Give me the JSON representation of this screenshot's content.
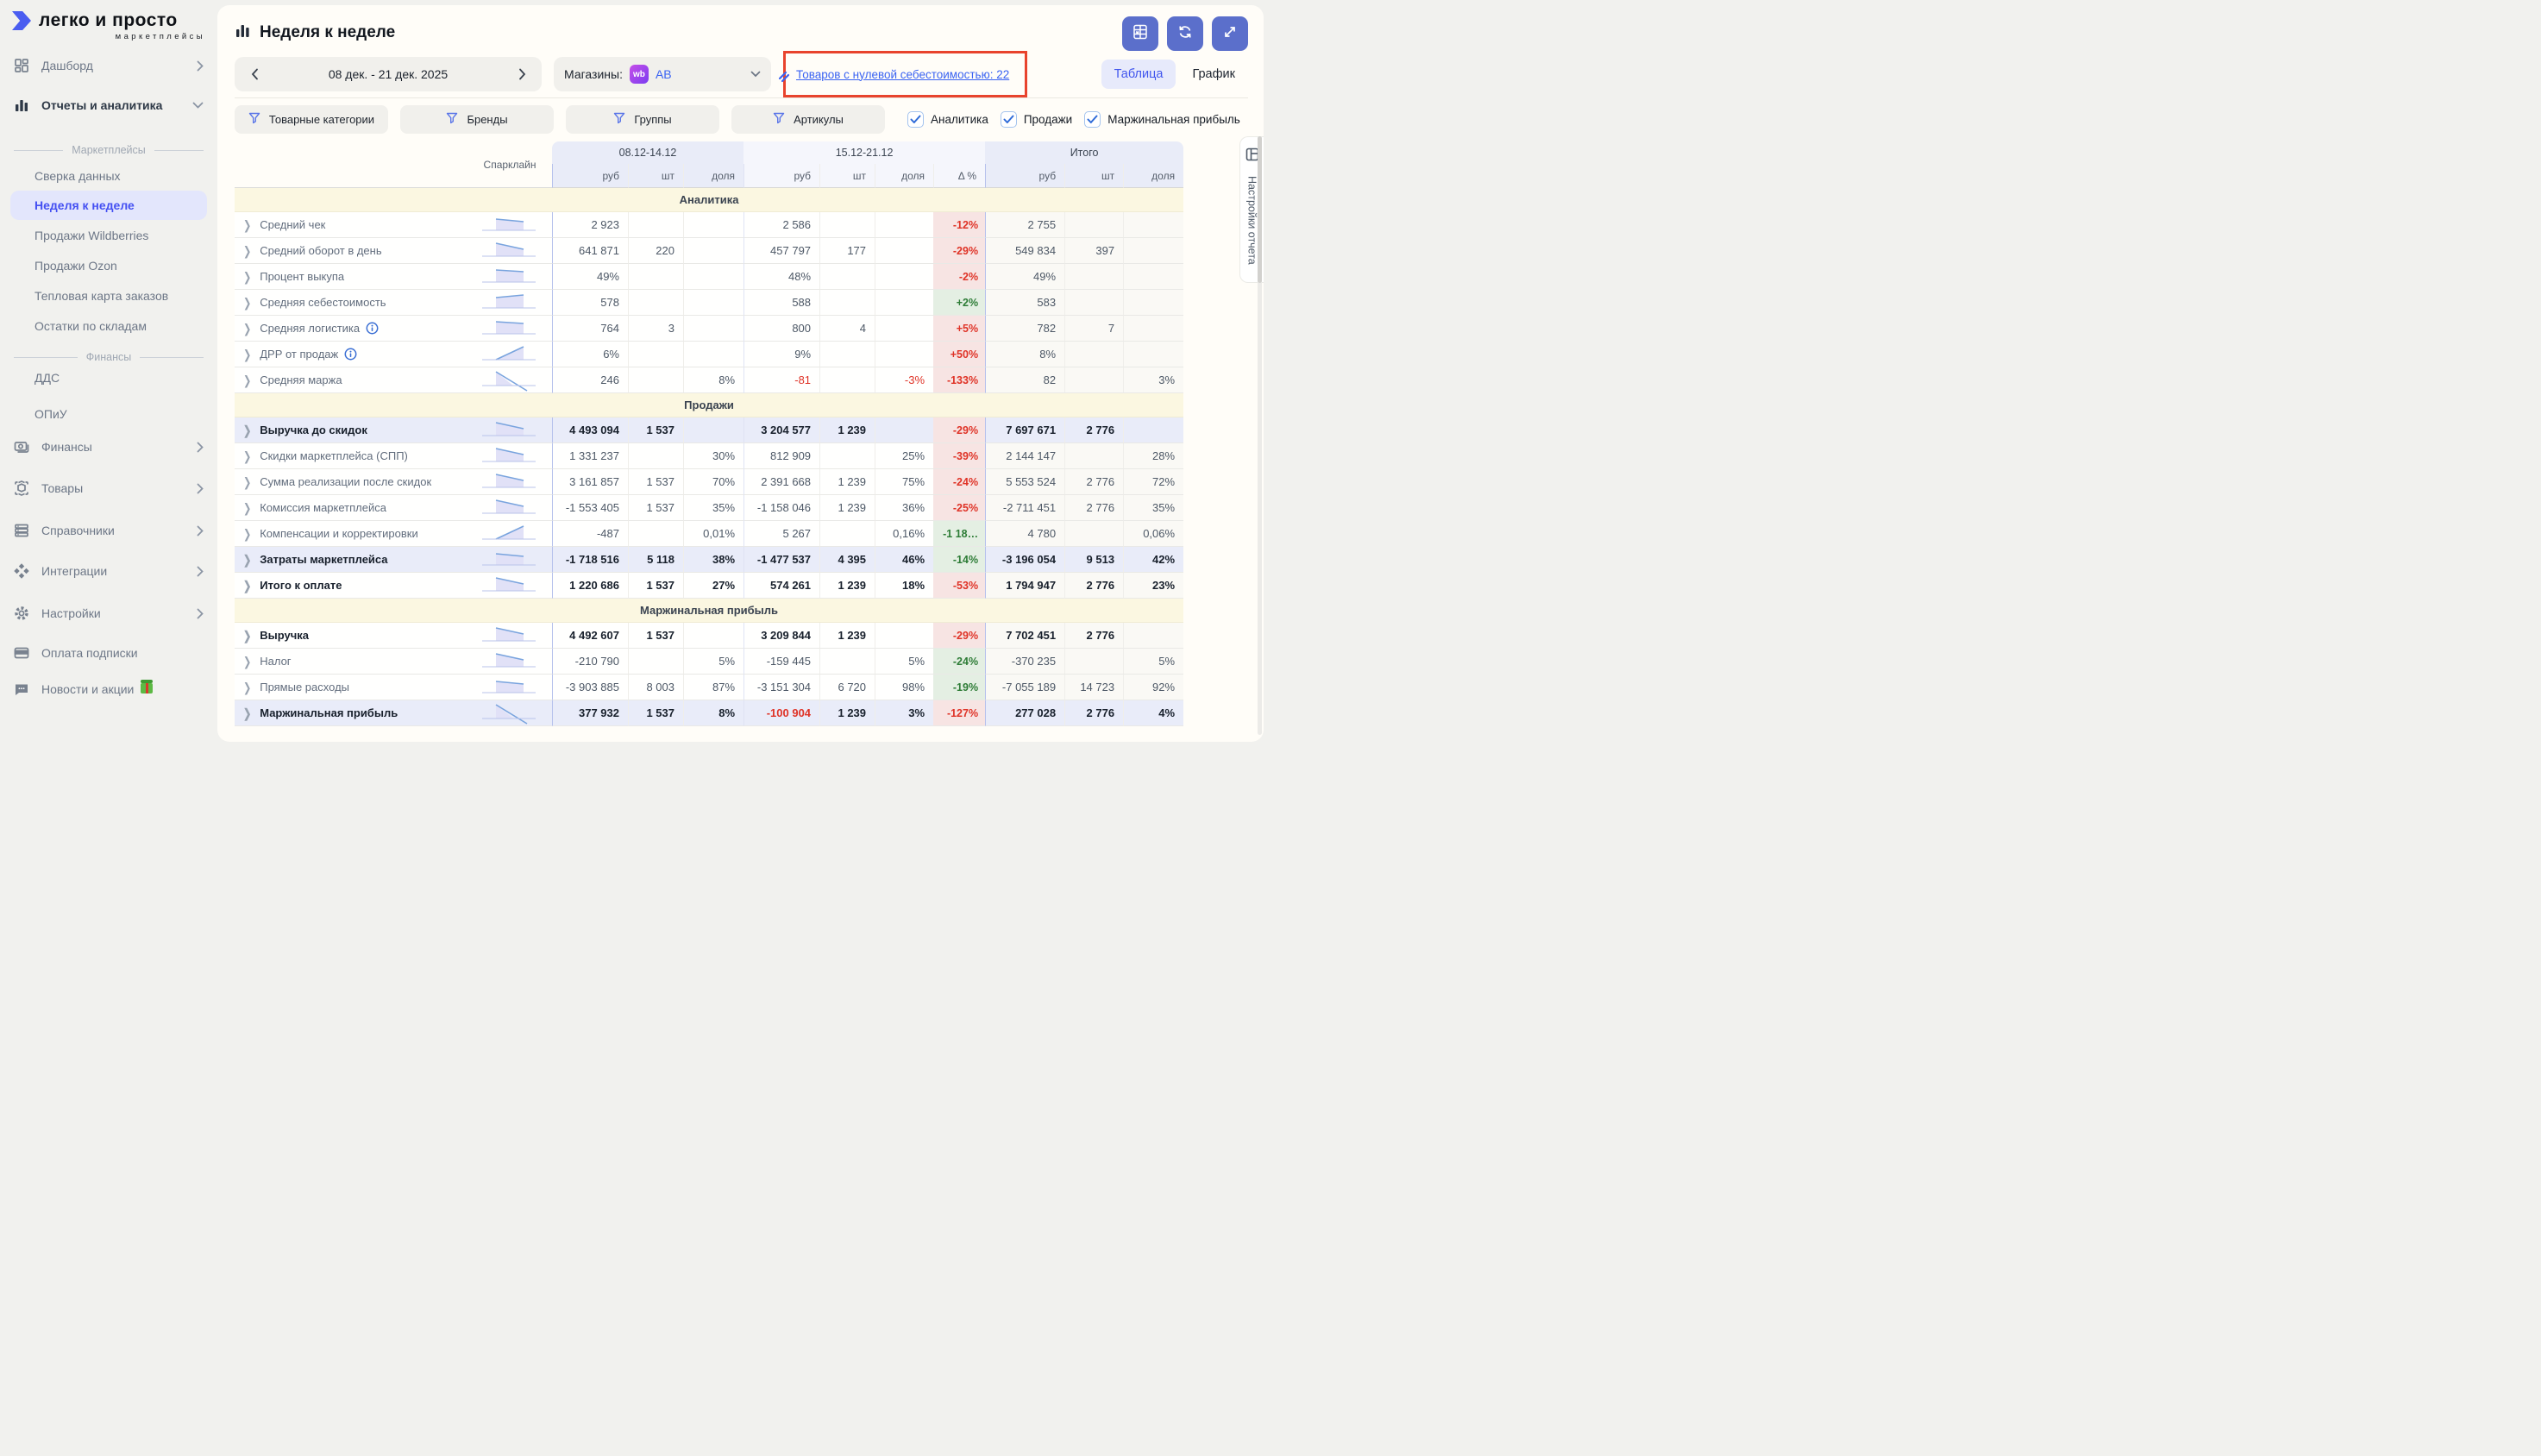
{
  "brand": {
    "name": "легко и просто",
    "tagline": "маркетплейсы"
  },
  "colors": {
    "accent_blue": "#4450f2",
    "link_blue": "#3a63f2",
    "negative": "#df3327",
    "positive": "#2d7c36",
    "delta_neg_bg": "#f7e4e3",
    "delta_pos_bg": "#e4efe3",
    "highlight_row": "#e9ecf9",
    "section_band": "#fbf7e1",
    "header_group": "#e9ecf8",
    "alert_border": "#e8432d",
    "toolbar_button": "#5b6fcb",
    "wb_badge": "#9b3de8"
  },
  "sidebar": {
    "entries": [
      {
        "type": "item",
        "label": "Дашборд",
        "icon": "dashboard-icon",
        "chevron": "right"
      },
      {
        "type": "item",
        "label": "Отчеты и аналитика",
        "icon": "bar-chart-icon",
        "chevron": "down",
        "active": true
      },
      {
        "type": "divider",
        "label": "Маркетплейсы"
      },
      {
        "type": "link",
        "label": "Сверка данных"
      },
      {
        "type": "link",
        "label": "Неделя к неделе",
        "selected": true
      },
      {
        "type": "link",
        "label": "Продажи Wildberries"
      },
      {
        "type": "link",
        "label": "Продажи Ozon"
      },
      {
        "type": "link",
        "label": "Тепловая карта заказов"
      },
      {
        "type": "link",
        "label": "Остатки по складам"
      },
      {
        "type": "divider",
        "label": "Финансы"
      },
      {
        "type": "link",
        "label": "ДДС"
      },
      {
        "type": "link",
        "label": "ОПиУ"
      },
      {
        "type": "item",
        "label": "Финансы",
        "icon": "money-icon",
        "chevron": "right"
      },
      {
        "type": "item",
        "label": "Товары",
        "icon": "box-icon",
        "chevron": "right"
      },
      {
        "type": "item",
        "label": "Справочники",
        "icon": "list-icon",
        "chevron": "right"
      },
      {
        "type": "item",
        "label": "Интеграции",
        "icon": "integrations-icon",
        "chevron": "right"
      },
      {
        "type": "item",
        "label": "Настройки",
        "icon": "gear-icon",
        "chevron": "right"
      },
      {
        "type": "item",
        "label": "Оплата подписки",
        "icon": "card-icon"
      },
      {
        "type": "item",
        "label": "Новости и акции",
        "icon": "chat-icon",
        "gift": true
      }
    ]
  },
  "header": {
    "title": "Неделя к неделе",
    "date_range": "08 дек. - 21 дек. 2025",
    "stores_label": "Магазины:",
    "store_badge": "wb",
    "store_value": "АВ",
    "alert_link": "Товаров с нулевой себестоимостью: 22",
    "tabs": [
      {
        "label": "Таблица",
        "active": true
      },
      {
        "label": "График",
        "active": false
      }
    ],
    "toolbar": [
      {
        "icon": "excel-export-icon"
      },
      {
        "icon": "refresh-icon"
      },
      {
        "icon": "expand-icon"
      }
    ]
  },
  "filters": {
    "buttons": [
      "Товарные категории",
      "Бренды",
      "Группы",
      "Артикулы"
    ],
    "checkboxes": [
      {
        "label": "Аналитика",
        "checked": true
      },
      {
        "label": "Продажи",
        "checked": true
      },
      {
        "label": "Маржинальная прибыль",
        "checked": true
      }
    ]
  },
  "table": {
    "spark_header": "Спарклайн",
    "settings_panel": "Настройки отчета",
    "groups": [
      {
        "label": "08.12-14.12",
        "cols": [
          "руб",
          "шт",
          "доля"
        ]
      },
      {
        "label": "15.12-21.12",
        "cols": [
          "руб",
          "шт",
          "доля",
          "Δ %"
        ]
      },
      {
        "label": "Итого",
        "cols": [
          "руб",
          "шт",
          "доля"
        ]
      }
    ],
    "sections": [
      {
        "title": "Аналитика",
        "rows": [
          {
            "label": "Средний чек",
            "trend": "down1",
            "p1": [
              "2 923",
              "",
              ""
            ],
            "p2": [
              "2 586",
              "",
              ""
            ],
            "delta": "-12%",
            "tone": "neg",
            "total": [
              "2 755",
              "",
              ""
            ]
          },
          {
            "label": "Средний оборот в день",
            "trend": "down2",
            "p1": [
              "641 871",
              "220",
              ""
            ],
            "p2": [
              "457 797",
              "177",
              ""
            ],
            "delta": "-29%",
            "tone": "neg",
            "total": [
              "549 834",
              "397",
              ""
            ]
          },
          {
            "label": "Процент выкупа",
            "trend": "flat",
            "p1": [
              "49%",
              "",
              ""
            ],
            "p2": [
              "48%",
              "",
              ""
            ],
            "delta": "-2%",
            "tone": "neg",
            "total": [
              "49%",
              "",
              ""
            ]
          },
          {
            "label": "Средняя себестоимость",
            "trend": "flatup",
            "p1": [
              "578",
              "",
              ""
            ],
            "p2": [
              "588",
              "",
              ""
            ],
            "delta": "+2%",
            "tone": "pos",
            "total": [
              "583",
              "",
              ""
            ]
          },
          {
            "label": "Средняя логистика",
            "info": true,
            "trend": "flat",
            "p1": [
              "764",
              "3",
              ""
            ],
            "p2": [
              "800",
              "4",
              ""
            ],
            "delta": "+5%",
            "tone": "neg",
            "total": [
              "782",
              "7",
              ""
            ]
          },
          {
            "label": "ДРР от продаж",
            "info": true,
            "trend": "up",
            "p1": [
              "6%",
              "",
              ""
            ],
            "p2": [
              "9%",
              "",
              ""
            ],
            "delta": "+50%",
            "tone": "neg",
            "total": [
              "8%",
              "",
              ""
            ]
          },
          {
            "label": "Средняя маржа",
            "trend": "downcross",
            "p1": [
              "246",
              "",
              "8%"
            ],
            "p2": [
              "-81",
              "",
              "-3%"
            ],
            "red": [
              "p2r",
              "p2d"
            ],
            "delta": "-133%",
            "tone": "neg",
            "total": [
              "82",
              "",
              "3%"
            ]
          }
        ]
      },
      {
        "title": "Продажи",
        "rows": [
          {
            "label": "Выручка до скидок",
            "bold": true,
            "hl": true,
            "trend": "down2",
            "p1": [
              "4 493 094",
              "1 537",
              ""
            ],
            "p2": [
              "3 204 577",
              "1 239",
              ""
            ],
            "delta": "-29%",
            "tone": "neg",
            "total": [
              "7 697 671",
              "2 776",
              ""
            ]
          },
          {
            "label": "Скидки маркетплейса (СПП)",
            "trend": "down2",
            "p1": [
              "1 331 237",
              "",
              "30%"
            ],
            "p2": [
              "812 909",
              "",
              "25%"
            ],
            "delta": "-39%",
            "tone": "neg",
            "total": [
              "2 144 147",
              "",
              "28%"
            ]
          },
          {
            "label": "Сумма реализации после скидок",
            "trend": "down2",
            "p1": [
              "3 161 857",
              "1 537",
              "70%"
            ],
            "p2": [
              "2 391 668",
              "1 239",
              "75%"
            ],
            "delta": "-24%",
            "tone": "neg",
            "total": [
              "5 553 524",
              "2 776",
              "72%"
            ]
          },
          {
            "label": "Комиссия маркетплейса",
            "trend": "down2",
            "p1": [
              "-1 553 405",
              "1 537",
              "35%"
            ],
            "p2": [
              "-1 158 046",
              "1 239",
              "36%"
            ],
            "delta": "-25%",
            "tone": "neg",
            "total": [
              "-2 711 451",
              "2 776",
              "35%"
            ]
          },
          {
            "label": "Компенсации и корректировки",
            "trend": "up",
            "p1": [
              "-487",
              "",
              "0,01%"
            ],
            "p2": [
              "5 267",
              "",
              "0,16%"
            ],
            "delta": "-1 18…",
            "tone": "pos",
            "total": [
              "4 780",
              "",
              "0,06%"
            ]
          },
          {
            "label": "Затраты маркетплейса",
            "bold": true,
            "hl": true,
            "trend": "down1",
            "p1": [
              "-1 718 516",
              "5 118",
              "38%"
            ],
            "p2": [
              "-1 477 537",
              "4 395",
              "46%"
            ],
            "delta": "-14%",
            "tone": "pos",
            "total": [
              "-3 196 054",
              "9 513",
              "42%"
            ]
          },
          {
            "label": "Итого к оплате",
            "bold": true,
            "trend": "down2",
            "p1": [
              "1 220 686",
              "1 537",
              "27%"
            ],
            "p2": [
              "574 261",
              "1 239",
              "18%"
            ],
            "delta": "-53%",
            "tone": "neg",
            "total": [
              "1 794 947",
              "2 776",
              "23%"
            ]
          }
        ]
      },
      {
        "title": "Маржинальная прибыль",
        "rows": [
          {
            "label": "Выручка",
            "bold": true,
            "trend": "down2",
            "p1": [
              "4 492 607",
              "1 537",
              ""
            ],
            "p2": [
              "3 209 844",
              "1 239",
              ""
            ],
            "delta": "-29%",
            "tone": "neg",
            "total": [
              "7 702 451",
              "2 776",
              ""
            ]
          },
          {
            "label": "Налог",
            "trend": "down2",
            "p1": [
              "-210 790",
              "",
              "5%"
            ],
            "p2": [
              "-159 445",
              "",
              "5%"
            ],
            "delta": "-24%",
            "tone": "pos",
            "total": [
              "-370 235",
              "",
              "5%"
            ]
          },
          {
            "label": "Прямые расходы",
            "trend": "down1",
            "p1": [
              "-3 903 885",
              "8 003",
              "87%"
            ],
            "p2": [
              "-3 151 304",
              "6 720",
              "98%"
            ],
            "delta": "-19%",
            "tone": "pos",
            "total": [
              "-7 055 189",
              "14 723",
              "92%"
            ]
          },
          {
            "label": "Маржинальная прибыль",
            "bold": true,
            "hl": true,
            "trend": "downcross",
            "p1": [
              "377 932",
              "1 537",
              "8%"
            ],
            "p2": [
              "-100 904",
              "1 239",
              "3%"
            ],
            "red": [
              "p2r"
            ],
            "delta": "-127%",
            "tone": "neg",
            "total": [
              "277 028",
              "2 776",
              "4%"
            ]
          }
        ]
      }
    ]
  }
}
